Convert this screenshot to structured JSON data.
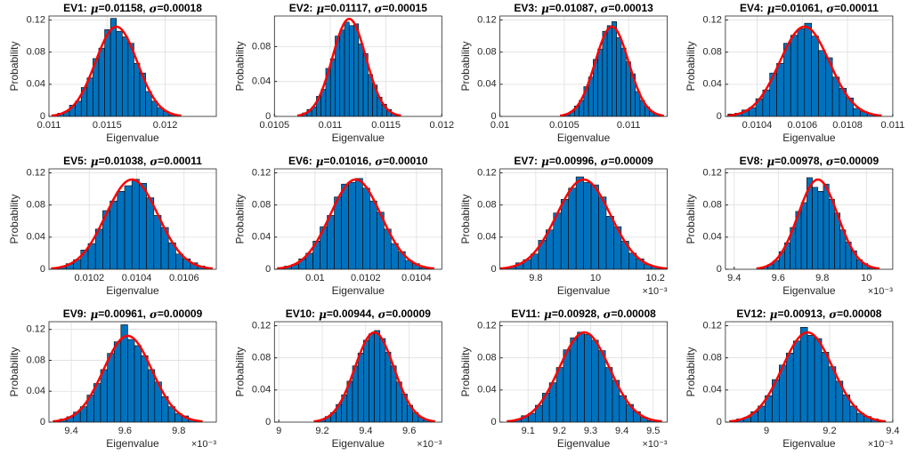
{
  "axis_labels": {
    "x": "Eigenvalue",
    "y": "Probability"
  },
  "title_marks": {
    "equals": "=",
    "separator": ","
  },
  "chart_data": [
    {
      "type": "histogram",
      "title": "EV1:",
      "params": [
        {
          "symbol": "μ",
          "value": 0.01158,
          "label": "0.01158"
        },
        {
          "symbol": "σ",
          "value": 0.00018,
          "label": "0.00018"
        }
      ],
      "color": "#0072bd",
      "fit_color": "#ff0000",
      "grid": true,
      "bins": [
        0.0110256,
        0.011076,
        0.0111264,
        0.0111768,
        0.0112272,
        0.0112776,
        0.011328,
        0.0113784,
        0.0114288,
        0.0114792,
        0.0115296,
        0.01158,
        0.0116304,
        0.0116808,
        0.0117312,
        0.0117816,
        0.011832,
        0.0118824,
        0.0119328,
        0.0119832,
        0.0120336,
        0.012084,
        0.0121344
      ],
      "values": [
        0.002,
        0.004,
        0.006,
        0.014,
        0.019,
        0.036,
        0.048,
        0.072,
        0.085,
        0.108,
        0.122,
        0.106,
        0.099,
        0.091,
        0.066,
        0.054,
        0.031,
        0.019,
        0.011,
        0.006,
        0.002,
        0.001
      ],
      "xlim": [
        0.011,
        0.01244
      ],
      "xticks": [
        0.011,
        0.0115,
        0.012
      ],
      "ylim": [
        0,
        0.125
      ],
      "yticks": [
        0,
        0.04,
        0.08,
        0.12
      ]
    },
    {
      "type": "histogram",
      "title": "EV2:",
      "params": [
        {
          "symbol": "μ",
          "value": 0.01117,
          "label": "0.01117"
        },
        {
          "symbol": "σ",
          "value": 0.00015,
          "label": "0.00015"
        }
      ],
      "color": "#0072bd",
      "fit_color": "#ff0000",
      "grid": true,
      "bins": [
        0.010708,
        0.01075,
        0.010792,
        0.010834,
        0.010876,
        0.010918,
        0.01096,
        0.011002,
        0.011044,
        0.011086,
        0.011128,
        0.01117,
        0.011212,
        0.011254,
        0.011296,
        0.011338,
        0.01138,
        0.011422,
        0.011464,
        0.011506,
        0.011548,
        0.01159,
        0.011632
      ],
      "values": [
        0.001,
        0.004,
        0.008,
        0.011,
        0.023,
        0.031,
        0.055,
        0.066,
        0.092,
        0.099,
        0.108,
        0.104,
        0.106,
        0.083,
        0.072,
        0.048,
        0.036,
        0.022,
        0.014,
        0.008,
        0.003,
        0.002
      ],
      "xlim": [
        0.0105,
        0.012
      ],
      "xticks": [
        0.0105,
        0.011,
        0.0115,
        0.012
      ],
      "ylim": [
        0,
        0.115
      ],
      "yticks": [
        0,
        0.04,
        0.08
      ]
    },
    {
      "type": "histogram",
      "title": "EV3:",
      "params": [
        {
          "symbol": "μ",
          "value": 0.01087,
          "label": "0.01087"
        },
        {
          "symbol": "σ",
          "value": 0.00013,
          "label": "0.00013"
        }
      ],
      "color": "#0072bd",
      "fit_color": "#ff0000",
      "grid": true,
      "bins": [
        0.0104696,
        0.010506,
        0.0105424,
        0.0105788,
        0.0106152,
        0.0106516,
        0.010688,
        0.0107244,
        0.0107608,
        0.0107972,
        0.0108336,
        0.01087,
        0.0109064,
        0.0109428,
        0.0109792,
        0.0110156,
        0.011052,
        0.0110884,
        0.0111248,
        0.0111612,
        0.0111976,
        0.011234,
        0.0112704
      ],
      "values": [
        0.001,
        0.002,
        0.006,
        0.013,
        0.02,
        0.037,
        0.049,
        0.071,
        0.084,
        0.106,
        0.113,
        0.118,
        0.098,
        0.085,
        0.068,
        0.053,
        0.031,
        0.02,
        0.012,
        0.006,
        0.003,
        0.001
      ],
      "xlim": [
        0.01,
        0.0113
      ],
      "xticks": [
        0.01,
        0.0105,
        0.011
      ],
      "ylim": [
        0,
        0.125
      ],
      "yticks": [
        0,
        0.04,
        0.08,
        0.12
      ]
    },
    {
      "type": "histogram",
      "title": "EV4:",
      "params": [
        {
          "symbol": "μ",
          "value": 0.01061,
          "label": "0.01061"
        },
        {
          "symbol": "σ",
          "value": 0.00011,
          "label": "0.00011"
        }
      ],
      "color": "#0072bd",
      "fit_color": "#ff0000",
      "grid": true,
      "bins": [
        0.0102712,
        0.010302,
        0.0103328,
        0.0103636,
        0.0103944,
        0.0104252,
        0.010456,
        0.0104868,
        0.0105176,
        0.0105484,
        0.0105792,
        0.01061,
        0.0106408,
        0.0106716,
        0.0107024,
        0.0107332,
        0.010764,
        0.0107948,
        0.0108256,
        0.0108564,
        0.0108872,
        0.010918,
        0.0109488
      ],
      "values": [
        0.003,
        0.004,
        0.008,
        0.011,
        0.022,
        0.033,
        0.054,
        0.066,
        0.091,
        0.101,
        0.109,
        0.116,
        0.1,
        0.082,
        0.073,
        0.049,
        0.035,
        0.023,
        0.01,
        0.006,
        0.003,
        0.002
      ],
      "xlim": [
        0.01026,
        0.011
      ],
      "xticks": [
        0.0104,
        0.0106,
        0.0108,
        0.011
      ],
      "ylim": [
        0,
        0.125
      ],
      "yticks": [
        0,
        0.04,
        0.08,
        0.12
      ]
    },
    {
      "type": "histogram",
      "title": "EV5:",
      "params": [
        {
          "symbol": "μ",
          "value": 0.01038,
          "label": "0.01038"
        },
        {
          "symbol": "σ",
          "value": 0.00011,
          "label": "0.00011"
        }
      ],
      "color": "#0072bd",
      "fit_color": "#ff0000",
      "grid": true,
      "bins": [
        0.0100412,
        0.010072,
        0.0101028,
        0.0101336,
        0.0101644,
        0.0101952,
        0.010226,
        0.0102568,
        0.0102876,
        0.0103184,
        0.0103492,
        0.01038,
        0.0104108,
        0.0104416,
        0.0104724,
        0.0105032,
        0.010534,
        0.0105648,
        0.0105956,
        0.0106264,
        0.0106572,
        0.010688,
        0.0107188
      ],
      "values": [
        0.002,
        0.003,
        0.007,
        0.012,
        0.024,
        0.032,
        0.05,
        0.073,
        0.085,
        0.097,
        0.104,
        0.112,
        0.107,
        0.089,
        0.067,
        0.052,
        0.033,
        0.019,
        0.013,
        0.008,
        0.004,
        0.001
      ],
      "xlim": [
        0.01003,
        0.010736
      ],
      "xticks": [
        0.0102,
        0.0104,
        0.0106
      ],
      "ylim": [
        0,
        0.125
      ],
      "yticks": [
        0,
        0.04,
        0.08,
        0.12
      ]
    },
    {
      "type": "histogram",
      "title": "EV6:",
      "params": [
        {
          "symbol": "μ",
          "value": 0.01016,
          "label": "0.01016"
        },
        {
          "symbol": "σ",
          "value": 0.0001,
          "label": "0.00010"
        }
      ],
      "color": "#0072bd",
      "fit_color": "#ff0000",
      "grid": true,
      "bins": [
        0.009852,
        0.00988,
        0.009908,
        0.009936,
        0.009964,
        0.009992,
        0.01002,
        0.010048,
        0.010076,
        0.010104,
        0.010132,
        0.01016,
        0.010188,
        0.010216,
        0.010244,
        0.010272,
        0.0103,
        0.010328,
        0.010356,
        0.010384,
        0.010412,
        0.01044,
        0.010468
      ],
      "values": [
        0.002,
        0.004,
        0.006,
        0.013,
        0.02,
        0.035,
        0.053,
        0.067,
        0.09,
        0.106,
        0.108,
        0.113,
        0.101,
        0.085,
        0.071,
        0.05,
        0.032,
        0.022,
        0.011,
        0.007,
        0.002,
        0.002
      ],
      "xlim": [
        0.00984,
        0.0105
      ],
      "xticks": [
        0.01,
        0.0102,
        0.0104
      ],
      "ylim": [
        0,
        0.125
      ],
      "yticks": [
        0,
        0.04,
        0.08,
        0.12
      ]
    },
    {
      "type": "histogram",
      "title": "EV7:",
      "params": [
        {
          "symbol": "μ",
          "value": 0.00996,
          "label": "0.00996"
        },
        {
          "symbol": "σ",
          "value": 9e-05,
          "label": "0.00009"
        }
      ],
      "color": "#0072bd",
      "fit_color": "#ff0000",
      "grid": true,
      "bins": [
        0.0096828,
        0.009708,
        0.0097332,
        0.0097584,
        0.0097836,
        0.0098088,
        0.009834,
        0.0098592,
        0.0098844,
        0.0099096,
        0.0099348,
        0.00996,
        0.0099852,
        0.0100104,
        0.0100356,
        0.0100608,
        0.010086,
        0.0101112,
        0.0101364,
        0.0101616,
        0.0101868,
        0.010212,
        0.0102372
      ],
      "values": [
        0.001,
        0.003,
        0.008,
        0.012,
        0.019,
        0.036,
        0.049,
        0.07,
        0.087,
        0.101,
        0.115,
        0.108,
        0.105,
        0.09,
        0.066,
        0.053,
        0.035,
        0.02,
        0.013,
        0.006,
        0.003,
        0.001
      ],
      "xlim": [
        0.00968,
        0.01024
      ],
      "xticks": [
        {
          "value": 0.0098,
          "label": "9.8"
        },
        {
          "value": 0.01,
          "label": "10"
        },
        {
          "value": 0.0102,
          "label": "10.2"
        }
      ],
      "exponent": "×10⁻³",
      "ylim": [
        0,
        0.125
      ],
      "yticks": [
        0,
        0.04,
        0.08,
        0.12
      ]
    },
    {
      "type": "histogram",
      "title": "EV8:",
      "params": [
        {
          "symbol": "μ",
          "value": 0.00978,
          "label": "0.00978"
        },
        {
          "symbol": "σ",
          "value": 9e-05,
          "label": "0.00009"
        }
      ],
      "color": "#0072bd",
      "fit_color": "#ff0000",
      "grid": true,
      "bins": [
        0.0095028,
        0.009528,
        0.0095532,
        0.0095784,
        0.0096036,
        0.0096288,
        0.009654,
        0.0096792,
        0.0097044,
        0.0097296,
        0.0097548,
        0.00978,
        0.0098052,
        0.0098304,
        0.0098556,
        0.0098808,
        0.009906,
        0.0099312,
        0.0099564,
        0.0099816,
        0.0100068,
        0.010032,
        0.0100572
      ],
      "values": [
        0.002,
        0.003,
        0.006,
        0.011,
        0.022,
        0.033,
        0.052,
        0.072,
        0.083,
        0.114,
        0.102,
        0.097,
        0.106,
        0.087,
        0.07,
        0.049,
        0.034,
        0.023,
        0.012,
        0.007,
        0.002,
        0.002
      ],
      "xlim": [
        0.00936,
        0.01012
      ],
      "xticks": [
        {
          "value": 0.0094,
          "label": "9.4"
        },
        {
          "value": 0.0096,
          "label": "9.6"
        },
        {
          "value": 0.0098,
          "label": "9.8"
        },
        {
          "value": 0.01,
          "label": "10"
        }
      ],
      "exponent": "×10⁻³",
      "ylim": [
        0,
        0.125
      ],
      "yticks": [
        0,
        0.04,
        0.08,
        0.12
      ]
    },
    {
      "type": "histogram",
      "title": "EV9:",
      "params": [
        {
          "symbol": "μ",
          "value": 0.00961,
          "label": "0.00961"
        },
        {
          "symbol": "σ",
          "value": 9e-05,
          "label": "0.00009"
        }
      ],
      "color": "#0072bd",
      "fit_color": "#ff0000",
      "grid": true,
      "bins": [
        0.0093328,
        0.009358,
        0.0093832,
        0.0094084,
        0.0094336,
        0.0094588,
        0.009484,
        0.0095092,
        0.0095344,
        0.0095596,
        0.0095848,
        0.00961,
        0.0096352,
        0.0096604,
        0.0096856,
        0.0097108,
        0.009736,
        0.0097612,
        0.0097864,
        0.0098116,
        0.0098368,
        0.009862,
        0.0098872
      ],
      "values": [
        0.002,
        0.004,
        0.007,
        0.013,
        0.02,
        0.035,
        0.05,
        0.068,
        0.089,
        0.104,
        0.126,
        0.107,
        0.099,
        0.086,
        0.068,
        0.052,
        0.033,
        0.02,
        0.011,
        0.008,
        0.003,
        0.001
      ],
      "xlim": [
        0.009317,
        0.00994
      ],
      "xticks": [
        {
          "value": 0.0094,
          "label": "9.4"
        },
        {
          "value": 0.0096,
          "label": "9.6"
        },
        {
          "value": 0.0098,
          "label": "9.8"
        }
      ],
      "exponent": "×10⁻³",
      "ylim": [
        0,
        0.13
      ],
      "yticks": [
        0,
        0.04,
        0.08,
        0.12
      ]
    },
    {
      "type": "histogram",
      "title": "EV10:",
      "params": [
        {
          "symbol": "μ",
          "value": 0.00944,
          "label": "0.00944"
        },
        {
          "symbol": "σ",
          "value": 9e-05,
          "label": "0.00009"
        }
      ],
      "color": "#0072bd",
      "fit_color": "#ff0000",
      "grid": true,
      "bins": [
        0.0091628,
        0.009188,
        0.0092132,
        0.0092384,
        0.0092636,
        0.0092888,
        0.009314,
        0.0093392,
        0.0093644,
        0.0093896,
        0.0094148,
        0.00944,
        0.0094652,
        0.0094904,
        0.0095156,
        0.0095408,
        0.009566,
        0.0095912,
        0.0096164,
        0.0096416,
        0.0096668,
        0.009692,
        0.0097172
      ],
      "values": [
        0.001,
        0.003,
        0.007,
        0.012,
        0.022,
        0.034,
        0.051,
        0.07,
        0.086,
        0.102,
        0.11,
        0.114,
        0.104,
        0.087,
        0.07,
        0.05,
        0.035,
        0.021,
        0.012,
        0.006,
        0.003,
        0.002
      ],
      "xlim": [
        0.00898,
        0.00975
      ],
      "xticks": [
        {
          "value": 0.009,
          "label": "9"
        },
        {
          "value": 0.0092,
          "label": "9.2"
        },
        {
          "value": 0.0094,
          "label": "9.4"
        },
        {
          "value": 0.0096,
          "label": "9.6"
        }
      ],
      "exponent": "×10⁻³",
      "ylim": [
        0,
        0.125
      ],
      "yticks": [
        0,
        0.04,
        0.08,
        0.12
      ]
    },
    {
      "type": "histogram",
      "title": "EV11:",
      "params": [
        {
          "symbol": "μ",
          "value": 0.00928,
          "label": "0.00928"
        },
        {
          "symbol": "σ",
          "value": 8e-05,
          "label": "0.00008"
        }
      ],
      "color": "#0072bd",
      "fit_color": "#ff0000",
      "grid": true,
      "bins": [
        0.0090336,
        0.009056,
        0.0090784,
        0.0091008,
        0.0091232,
        0.0091456,
        0.009168,
        0.0091904,
        0.0092128,
        0.0092352,
        0.0092576,
        0.00928,
        0.0093024,
        0.0093248,
        0.0093472,
        0.0093696,
        0.009392,
        0.0094144,
        0.0094368,
        0.0094592,
        0.0094816,
        0.009504,
        0.0095264
      ],
      "values": [
        0.002,
        0.003,
        0.008,
        0.011,
        0.021,
        0.036,
        0.049,
        0.068,
        0.09,
        0.105,
        0.112,
        0.109,
        0.102,
        0.089,
        0.068,
        0.052,
        0.033,
        0.022,
        0.013,
        0.006,
        0.002,
        0.002
      ],
      "xlim": [
        0.00901,
        0.009545
      ],
      "xticks": [
        {
          "value": 0.0091,
          "label": "9.1"
        },
        {
          "value": 0.0092,
          "label": "9.2"
        },
        {
          "value": 0.0093,
          "label": "9.3"
        },
        {
          "value": 0.0094,
          "label": "9.4"
        },
        {
          "value": 0.0095,
          "label": "9.5"
        }
      ],
      "exponent": "×10⁻³",
      "ylim": [
        0,
        0.125
      ],
      "yticks": [
        0,
        0.04,
        0.08,
        0.12
      ]
    },
    {
      "type": "histogram",
      "title": "EV12:",
      "params": [
        {
          "symbol": "μ",
          "value": 0.00913,
          "label": "0.00913"
        },
        {
          "symbol": "σ",
          "value": 8e-05,
          "label": "0.00008"
        }
      ],
      "color": "#0072bd",
      "fit_color": "#ff0000",
      "grid": true,
      "bins": [
        0.0088836,
        0.008906,
        0.0089284,
        0.0089508,
        0.0089732,
        0.0089956,
        0.009018,
        0.0090404,
        0.0090628,
        0.0090852,
        0.0091076,
        0.00913,
        0.0091524,
        0.0091748,
        0.0091972,
        0.0092196,
        0.009242,
        0.0092644,
        0.0092868,
        0.0093092,
        0.0093316,
        0.009354,
        0.0093764
      ],
      "values": [
        0.001,
        0.004,
        0.006,
        0.013,
        0.02,
        0.033,
        0.053,
        0.071,
        0.086,
        0.101,
        0.118,
        0.108,
        0.104,
        0.087,
        0.069,
        0.051,
        0.034,
        0.02,
        0.011,
        0.007,
        0.004,
        0.001
      ],
      "xlim": [
        0.00887,
        0.0094
      ],
      "xticks": [
        {
          "value": 0.009,
          "label": "9"
        },
        {
          "value": 0.0092,
          "label": "9.2"
        },
        {
          "value": 0.0094,
          "label": "9.4"
        }
      ],
      "exponent": "×10⁻³",
      "ylim": [
        0,
        0.125
      ],
      "yticks": [
        0,
        0.04,
        0.08,
        0.12
      ]
    }
  ]
}
